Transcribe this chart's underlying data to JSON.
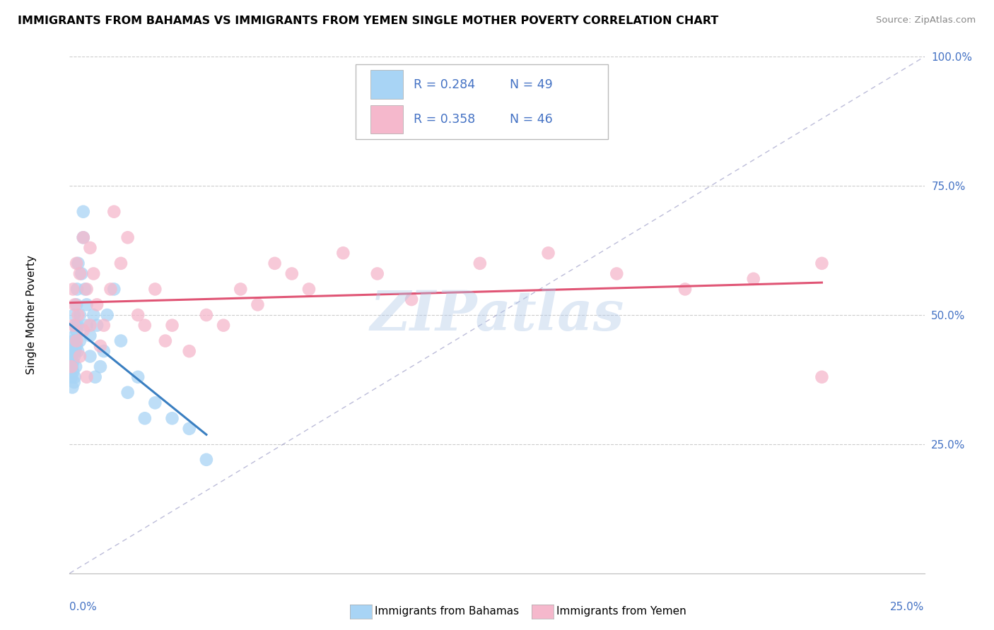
{
  "title": "IMMIGRANTS FROM BAHAMAS VS IMMIGRANTS FROM YEMEN SINGLE MOTHER POVERTY CORRELATION CHART",
  "source": "Source: ZipAtlas.com",
  "ylabel": "Single Mother Poverty",
  "xlim": [
    0,
    0.25
  ],
  "ylim": [
    0,
    1.0
  ],
  "bahamas_R": 0.284,
  "bahamas_N": 49,
  "yemen_R": 0.358,
  "yemen_N": 46,
  "legend_label_bahamas": "Immigrants from Bahamas",
  "legend_label_yemen": "Immigrants from Yemen",
  "bahamas_color": "#a8d4f5",
  "yemen_color": "#f5b8cc",
  "bahamas_trend_color": "#3a7fc1",
  "yemen_trend_color": "#e05575",
  "ref_line_color": "#9090c0",
  "watermark": "ZIPatlas",
  "watermark_color": "#b0c8e8",
  "bahamas_x": [
    0.0005,
    0.0006,
    0.0007,
    0.0007,
    0.0008,
    0.0009,
    0.001,
    0.001,
    0.0012,
    0.0013,
    0.0013,
    0.0014,
    0.0015,
    0.0015,
    0.0016,
    0.0017,
    0.0018,
    0.002,
    0.002,
    0.002,
    0.0022,
    0.0023,
    0.0024,
    0.0025,
    0.003,
    0.003,
    0.0035,
    0.004,
    0.004,
    0.0045,
    0.005,
    0.005,
    0.006,
    0.006,
    0.007,
    0.0075,
    0.008,
    0.009,
    0.01,
    0.011,
    0.013,
    0.015,
    0.017,
    0.02,
    0.022,
    0.025,
    0.03,
    0.035,
    0.04
  ],
  "bahamas_y": [
    0.42,
    0.38,
    0.44,
    0.4,
    0.36,
    0.43,
    0.41,
    0.39,
    0.45,
    0.37,
    0.5,
    0.42,
    0.46,
    0.38,
    0.43,
    0.48,
    0.4,
    0.44,
    0.47,
    0.52,
    0.55,
    0.48,
    0.43,
    0.6,
    0.5,
    0.45,
    0.58,
    0.65,
    0.7,
    0.55,
    0.52,
    0.48,
    0.46,
    0.42,
    0.5,
    0.38,
    0.48,
    0.4,
    0.43,
    0.5,
    0.55,
    0.45,
    0.35,
    0.38,
    0.3,
    0.33,
    0.3,
    0.28,
    0.22
  ],
  "yemen_x": [
    0.0005,
    0.001,
    0.0012,
    0.0015,
    0.002,
    0.002,
    0.0025,
    0.003,
    0.003,
    0.004,
    0.004,
    0.005,
    0.005,
    0.006,
    0.006,
    0.007,
    0.008,
    0.009,
    0.01,
    0.012,
    0.013,
    0.015,
    0.017,
    0.02,
    0.022,
    0.025,
    0.028,
    0.03,
    0.035,
    0.04,
    0.045,
    0.05,
    0.055,
    0.06,
    0.065,
    0.07,
    0.08,
    0.09,
    0.1,
    0.12,
    0.14,
    0.16,
    0.18,
    0.2,
    0.22,
    0.22
  ],
  "yemen_y": [
    0.4,
    0.55,
    0.48,
    0.52,
    0.45,
    0.6,
    0.5,
    0.58,
    0.42,
    0.65,
    0.47,
    0.55,
    0.38,
    0.63,
    0.48,
    0.58,
    0.52,
    0.44,
    0.48,
    0.55,
    0.7,
    0.6,
    0.65,
    0.5,
    0.48,
    0.55,
    0.45,
    0.48,
    0.43,
    0.5,
    0.48,
    0.55,
    0.52,
    0.6,
    0.58,
    0.55,
    0.62,
    0.58,
    0.53,
    0.6,
    0.62,
    0.58,
    0.55,
    0.57,
    0.6,
    0.38
  ]
}
